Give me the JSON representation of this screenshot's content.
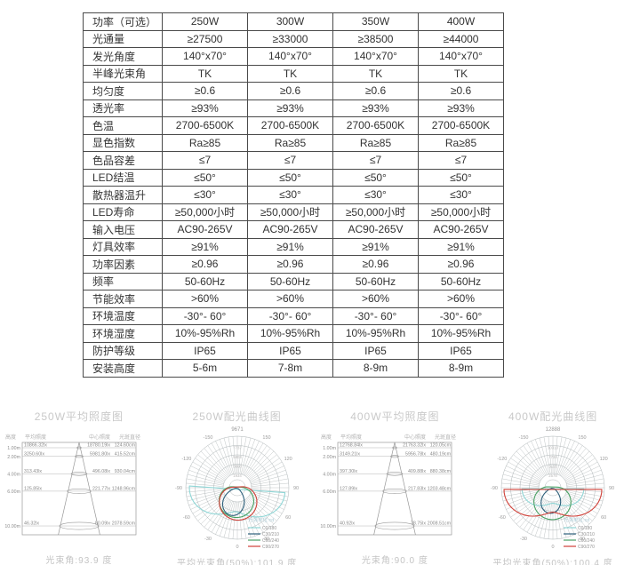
{
  "spec_table": {
    "rows": [
      {
        "label": "功率（可选）",
        "values": [
          "250W",
          "300W",
          "350W",
          "400W"
        ]
      },
      {
        "label": "光通量",
        "values": [
          "≥27500",
          "≥33000",
          "≥38500",
          "≥44000"
        ]
      },
      {
        "label": "发光角度",
        "values": [
          "140°x70°",
          "140°x70°",
          "140°x70°",
          "140°x70°"
        ]
      },
      {
        "label": "半峰光束角",
        "values": [
          "TK",
          "TK",
          "TK",
          "TK"
        ]
      },
      {
        "label": "均匀度",
        "values": [
          "≥0.6",
          "≥0.6",
          "≥0.6",
          "≥0.6"
        ]
      },
      {
        "label": "透光率",
        "values": [
          "≥93%",
          "≥93%",
          "≥93%",
          "≥93%"
        ]
      },
      {
        "label": "色温",
        "values": [
          "2700-6500K",
          "2700-6500K",
          "2700-6500K",
          "2700-6500K"
        ]
      },
      {
        "label": "显色指数",
        "values": [
          "Ra≥85",
          "Ra≥85",
          "Ra≥85",
          "Ra≥85"
        ]
      },
      {
        "label": "色品容差",
        "values": [
          "≤7",
          "≤7",
          "≤7",
          "≤7"
        ]
      },
      {
        "label": "LED结温",
        "values": [
          "≤50°",
          "≤50°",
          "≤50°",
          "≤50°"
        ]
      },
      {
        "label": "散热器温升",
        "values": [
          "≤30°",
          "≤30°",
          "≤30°",
          "≤30°"
        ]
      },
      {
        "label": "LED寿命",
        "values": [
          "≥50,000小时",
          "≥50,000小时",
          "≥50,000小时",
          "≥50,000小时"
        ]
      },
      {
        "label": "输入电压",
        "values": [
          "AC90-265V",
          "AC90-265V",
          "AC90-265V",
          "AC90-265V"
        ]
      },
      {
        "label": "灯具效率",
        "values": [
          "≥91%",
          "≥91%",
          "≥91%",
          "≥91%"
        ]
      },
      {
        "label": "功率因素",
        "values": [
          "≥0.96",
          "≥0.96",
          "≥0.96",
          "≥0.96"
        ]
      },
      {
        "label": "频率",
        "values": [
          "50-60Hz",
          "50-60Hz",
          "50-60Hz",
          "50-60Hz"
        ]
      },
      {
        "label": "节能效率",
        "values": [
          ">60%",
          ">60%",
          ">60%",
          ">60%"
        ]
      },
      {
        "label": "环境温度",
        "values": [
          "-30°- 60°",
          "-30°- 60°",
          "-30°- 60°",
          "-30°- 60°"
        ]
      },
      {
        "label": "环境湿度",
        "values": [
          "10%-95%Rh",
          "10%-95%Rh",
          "10%-95%Rh",
          "10%-95%Rh"
        ]
      },
      {
        "label": "防护等级",
        "values": [
          "IP65",
          "IP65",
          "IP65",
          "IP65"
        ]
      },
      {
        "label": "安装高度",
        "values": [
          "5-6m",
          "7-8m",
          "8-9m",
          "8-9m"
        ]
      }
    ]
  },
  "chart_data": [
    {
      "type": "table",
      "kind": "illuminance-cone",
      "title": "250W平均照度图",
      "columns": [
        "高度",
        "平均照度",
        "中心照度",
        "光斑直径"
      ],
      "rows": [
        {
          "height_m": 1,
          "height": "1.00m",
          "avg": "10866.32lx",
          "center": "18780.19lx",
          "spot": "124.60cm"
        },
        {
          "height_m": 2,
          "height": "2.00m",
          "avg": "3250.60lx",
          "center": "5981.80lx",
          "spot": "415.52cm"
        },
        {
          "height_m": 4,
          "height": "4.00m",
          "avg": "313.43lx",
          "center": "496.08lx",
          "spot": "930.04cm"
        },
        {
          "height_m": 6,
          "height": "6.00m",
          "avg": "125.85lx",
          "center": "221.77lx",
          "spot": "1248.96cm"
        },
        {
          "height_m": 10,
          "height": "10.00m",
          "avg": "46.32lx",
          "center": "80.09lx",
          "spot": "2078.59cm"
        }
      ],
      "caption": "光束角:93.9 度"
    },
    {
      "type": "line",
      "kind": "polar-distribution",
      "title": "250W配光曲线图",
      "max_cd_label": "9671",
      "ring_labels": [
        "7737",
        "5803",
        "3868",
        "1934"
      ],
      "angle_labels": [
        150,
        120,
        90,
        60,
        30,
        0,
        -30,
        -60,
        -90,
        -120,
        -150
      ],
      "legend_title": "光强单位:cd",
      "series": [
        {
          "name": "C0/180",
          "color": "#8fd6d6",
          "shape": "wide",
          "scale": 0.93,
          "tilt": -4
        },
        {
          "name": "C30/210",
          "color": "#2d5f7a",
          "shape": "narrow",
          "scale": 0.55,
          "tilt": -14
        },
        {
          "name": "C60/240",
          "color": "#4aa164",
          "shape": "round",
          "scale": 0.58,
          "tilt": -4
        },
        {
          "name": "C90/270",
          "color": "#d04038",
          "shape": "round",
          "scale": 0.63,
          "tilt": 3
        }
      ],
      "caption": "平均光束角(50%):101.9 度"
    },
    {
      "type": "table",
      "kind": "illuminance-cone",
      "title": "400W平均照度图",
      "columns": [
        "高度",
        "平均照度",
        "中心照度",
        "光斑直径"
      ],
      "rows": [
        {
          "height_m": 1,
          "height": "1.00m",
          "avg": "12768.84lx",
          "center": "21763.32lx",
          "spot": "120.05cm"
        },
        {
          "height_m": 2,
          "height": "2.00m",
          "avg": "3149.21lx",
          "center": "5956.78lx",
          "spot": "480.19cm"
        },
        {
          "height_m": 4,
          "height": "4.00m",
          "avg": "397.30lx",
          "center": "409.88lx",
          "spot": "880.38cm"
        },
        {
          "height_m": 6,
          "height": "6.00m",
          "avg": "127.89lx",
          "center": "217.83lx",
          "spot": "1203.48cm"
        },
        {
          "height_m": 10,
          "height": "10.00m",
          "avg": "40.92lx",
          "center": "78.75lx",
          "spot": "2008.51cm"
        }
      ],
      "caption": "光束角:90.0 度"
    },
    {
      "type": "line",
      "kind": "polar-distribution",
      "title": "400W配光曲线图",
      "max_cd_label": "12888",
      "ring_labels": [
        "10310",
        "7733",
        "5155",
        "2578"
      ],
      "angle_labels": [
        150,
        120,
        90,
        60,
        30,
        0,
        -30,
        -60,
        -90,
        -120,
        -150
      ],
      "legend_title": "光强单位:cd",
      "series": [
        {
          "name": "C0/180",
          "color": "#8fd6d6",
          "shape": "wide",
          "scale": 0.6,
          "tilt": 0
        },
        {
          "name": "C30/210",
          "color": "#2d5f7a",
          "shape": "narrow",
          "scale": 0.5,
          "tilt": -8
        },
        {
          "name": "C60/240",
          "color": "#4aa164",
          "shape": "round",
          "scale": 0.62,
          "tilt": -2
        },
        {
          "name": "C90/270",
          "color": "#d04038",
          "shape": "wide",
          "scale": 0.95,
          "tilt": 0
        }
      ],
      "caption": "平均光束角(50%):100.4 度"
    }
  ]
}
